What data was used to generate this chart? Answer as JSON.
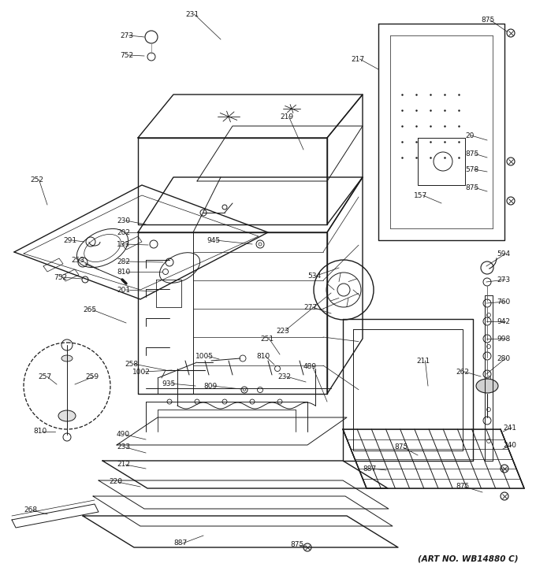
{
  "art_no": "(ART NO. WB14880 C)",
  "background_color": "#ffffff",
  "line_color": "#1a1a1a",
  "fig_width": 6.8,
  "fig_height": 7.25,
  "dpi": 100
}
